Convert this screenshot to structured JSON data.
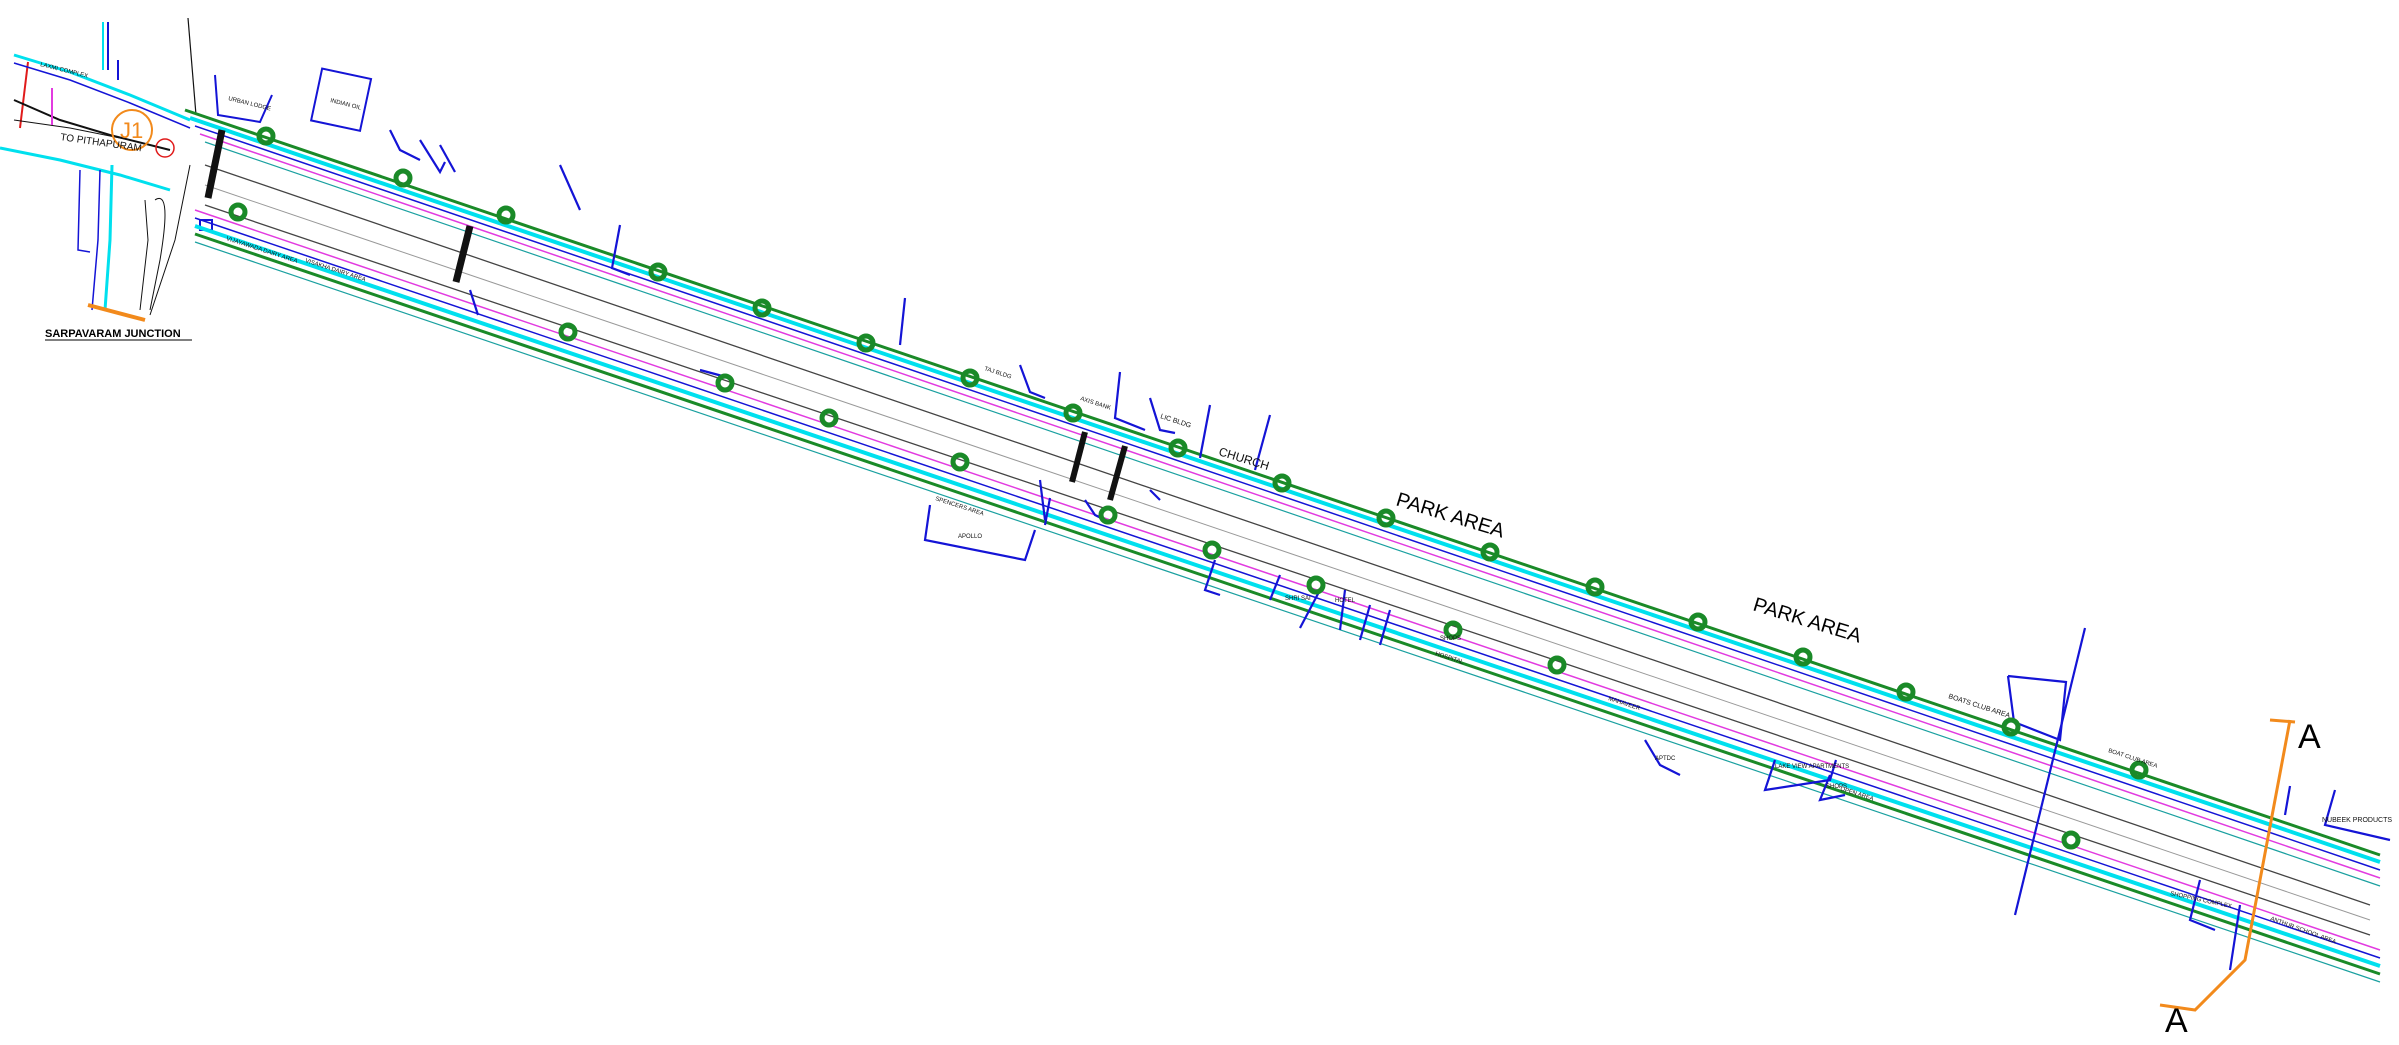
{
  "drawing": {
    "junction_title": "SARPAVARAM JUNCTION",
    "junction_marker": "J1",
    "direction_label": "TO PITHAPURAM",
    "section_marker_top": "A",
    "section_marker_bottom": "A",
    "big_labels": [
      "PARK AREA",
      "PARK AREA",
      "CHURCH"
    ],
    "building_labels": [
      "LAXMI COMPLEX",
      "INDIAN OIL",
      "URBAN LODGE",
      "VIJAYAWADA DAIRY AREA",
      "VISAKHA DAIRY AREA",
      "TAJ BLDG",
      "AXIS BANK",
      "LIC BLDG",
      "BOATS CLUB AREA",
      "BOAT CLUB AREA",
      "NUBEEK PRODUCTS",
      "SHOPPING COMPLEX",
      "ANTHUR SCHOOL AREA",
      "OPEN AREA",
      "MAHAVEER",
      "APTDC",
      "LAKE VIEW APARTMENTS",
      "SHOPS",
      "HOSPITAL",
      "SPENCERS AREA",
      "APOLLO",
      "SHRI SAI",
      "HOTEL",
      "SHOPS"
    ],
    "colors": {
      "boundary": "#1414d6",
      "cyan": "#00e0ee",
      "green": "#1a8a28",
      "magenta": "#e23be0",
      "orange": "#f28a1c",
      "red": "#e01b1b",
      "road": "#444444",
      "teal": "#1aa0a0"
    }
  }
}
